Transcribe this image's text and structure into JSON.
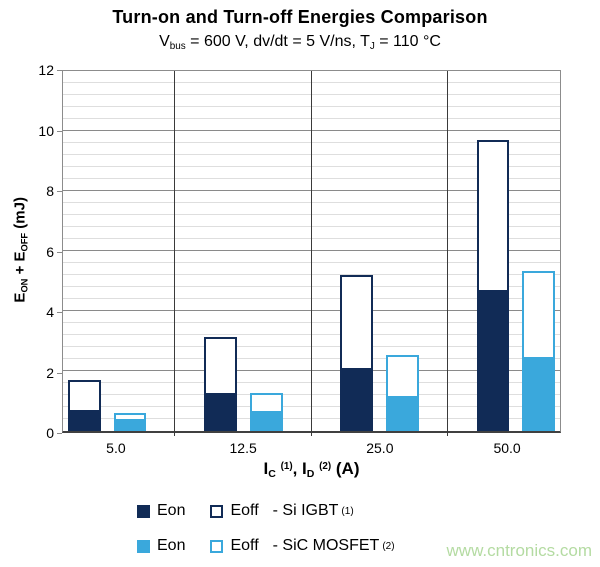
{
  "header": {
    "title": "Turn-on and Turn-off Energies Comparison",
    "subtitle_parts": [
      "V",
      "bus",
      " = 600 V, dv/dt = 5 V/ns, T",
      "J",
      " = 110 °C"
    ]
  },
  "axis": {
    "ylabel_parts": [
      "E",
      "ON",
      " + E",
      "OFF",
      " (mJ)"
    ],
    "xtitle_parts": [
      "I",
      "C",
      "(1)",
      ", I",
      "D",
      "(2)",
      " (A)"
    ]
  },
  "chart_data": {
    "type": "bar",
    "subtype": "stacked-grouped",
    "title": "Turn-on and Turn-off Energies Comparison",
    "subtitle": "Vbus = 600 V, dv/dt = 5 V/ns, TJ = 110 °C",
    "xlabel": "IC (1), ID (2) (A)",
    "ylabel": "EON + EOFF (mJ)",
    "categories": [
      "5.0",
      "12.5",
      "25.0",
      "50.0"
    ],
    "series": [
      {
        "name": "Eon - Si IGBT (1)",
        "stack": "Si IGBT",
        "style": "solid",
        "color": "#112b56",
        "values": [
          0.65,
          1.2,
          2.05,
          4.65
        ]
      },
      {
        "name": "Eoff - Si IGBT (1)",
        "stack": "Si IGBT",
        "style": "outline",
        "color": "#112b56",
        "values": [
          1.05,
          1.95,
          3.15,
          5.05
        ]
      },
      {
        "name": "Eon - SiC MOSFET (2)",
        "stack": "SiC MOSFET",
        "style": "solid",
        "color": "#3aa8dc",
        "values": [
          0.35,
          0.6,
          1.1,
          2.4
        ]
      },
      {
        "name": "Eoff - SiC MOSFET (2)",
        "stack": "SiC MOSFET",
        "style": "outline",
        "color": "#3aa8dc",
        "values": [
          0.25,
          0.67,
          1.42,
          2.95
        ]
      }
    ],
    "stack_totals": {
      "si_igbt": [
        1.7,
        3.15,
        5.2,
        9.7
      ],
      "sic_mosfet": [
        0.6,
        1.27,
        2.52,
        5.35
      ]
    },
    "ylim": [
      0,
      12
    ],
    "y_major_step": 2,
    "y_minor_step": 0.4,
    "y_ticks": [
      "0",
      "2",
      "4",
      "6",
      "8",
      "10",
      "12"
    ],
    "grid": "horizontal major + minor on, vertical category separators",
    "legend_position": "bottom-left"
  },
  "legend": {
    "rows": [
      {
        "eon_label": "Eon",
        "eoff_label": "Eoff",
        "device_label": "- Si IGBT",
        "sup": "(1)",
        "color": "#112b56"
      },
      {
        "eon_label": "Eon",
        "eoff_label": "Eoff",
        "device_label": "- SiC MOSFET",
        "sup": "(2)",
        "color": "#3aa8dc"
      }
    ]
  },
  "watermark": {
    "text": "www.cntronics.com",
    "color": "#b4dba2"
  },
  "colors": {
    "si_igbt_navy": "#112b56",
    "sic_mosfet_blue": "#3aa8dc",
    "grid_minor": "#dedede",
    "grid_major": "#8a8a8a",
    "separator": "#3a3a3a",
    "axis_line": "#404040",
    "watermark_green": "#b4dba2"
  }
}
